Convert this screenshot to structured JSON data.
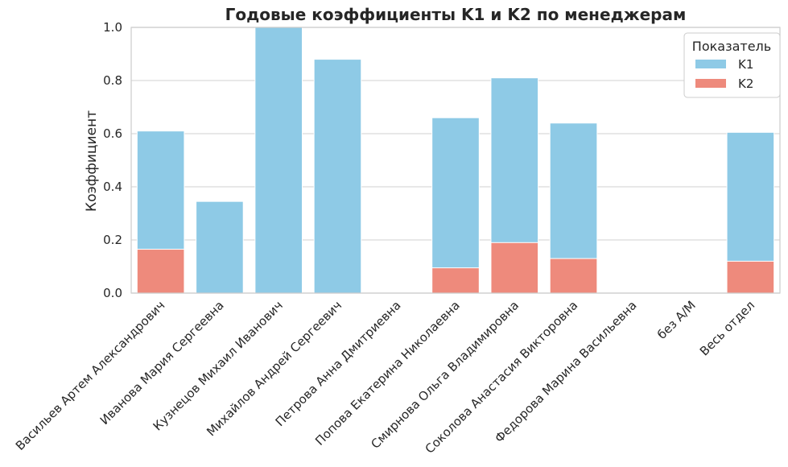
{
  "chart_data": {
    "type": "bar",
    "title": "Годовые коэффициенты K1 и K2 по менеджерам",
    "xlabel": "",
    "ylabel": "Коэффициент",
    "ylim": [
      0,
      1.0
    ],
    "yticks": [
      "0.0",
      "0.2",
      "0.4",
      "0.6",
      "0.8",
      "1.0"
    ],
    "grid": "horizontal",
    "categories": [
      "Васильев Артем Александрович",
      "Иванова Мария Сергеевна",
      "Кузнецов Михаил Иванович",
      "Михайлов Андрей Сергеевич",
      "Петрова Анна Дмитриевна",
      "Попова Екатерина Николаевна",
      "Смирнова Ольга Владимировна",
      "Соколова Анастасия Викторовна",
      "Федорова Марина Васильевна",
      "без А/М",
      "Весь отдел"
    ],
    "series": [
      {
        "name": "K1",
        "color": "#8ecae6",
        "values": [
          0.61,
          0.345,
          1.0,
          0.88,
          0.0,
          0.66,
          0.81,
          0.64,
          0.0,
          0.0,
          0.605
        ]
      },
      {
        "name": "K2",
        "color": "#ee8a7c",
        "values": [
          0.165,
          0.0,
          0.0,
          0.0,
          0.0,
          0.095,
          0.19,
          0.13,
          0.0,
          0.0,
          0.12
        ]
      }
    ],
    "legend": {
      "title": "Показатель",
      "placement": "top-right"
    }
  }
}
